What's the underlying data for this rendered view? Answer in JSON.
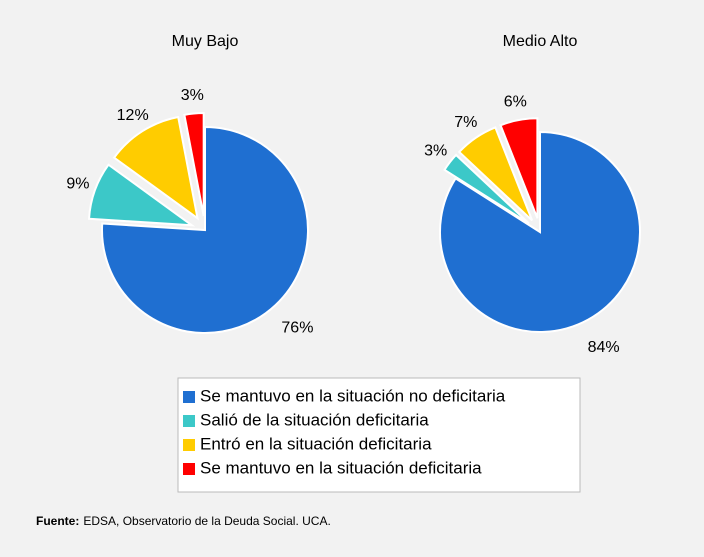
{
  "chart_data": [
    {
      "type": "pie",
      "title": "Muy Bajo",
      "values": [
        76,
        9,
        12,
        3
      ],
      "value_labels": [
        "76%",
        "9%",
        "12%",
        "3%"
      ]
    },
    {
      "type": "pie",
      "title": "Medio Alto",
      "values": [
        84,
        3,
        7,
        6
      ],
      "value_labels": [
        "84%",
        "3%",
        "7%",
        "6%"
      ]
    }
  ],
  "legend": {
    "categories": [
      "Se mantuvo en la situación no deficitaria",
      "Salió de la situación deficitaria",
      "Entró en la situación deficitaria",
      "Se mantuvo en la situación deficitaria"
    ],
    "colors": [
      "#1f6fd1",
      "#3cc8c8",
      "#ffcc00",
      "#ff0000"
    ]
  },
  "source": {
    "label": "Fuente:",
    "text": "EDSA, Observatorio de la Deuda Social. UCA."
  }
}
